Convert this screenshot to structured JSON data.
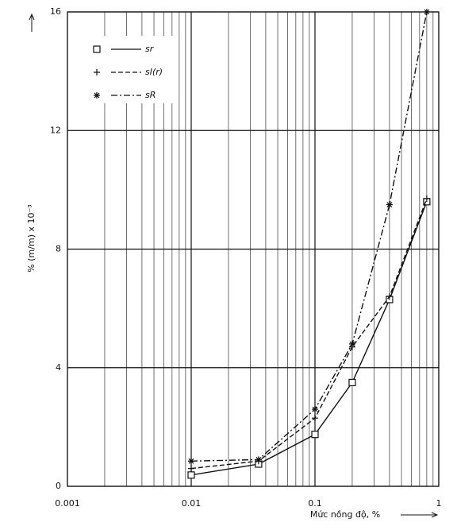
{
  "chart_data": {
    "type": "line",
    "x_label": "Mức nồng độ, %",
    "y_label": "% (m/m) x 10⁻³",
    "x": [
      0.01,
      0.035,
      0.1,
      0.2,
      0.4,
      0.8
    ],
    "series": [
      {
        "name": "sr",
        "color": "#111111",
        "dash": "solid",
        "marker": "square",
        "values": [
          0.38,
          0.75,
          1.75,
          3.5,
          6.3,
          9.6
        ]
      },
      {
        "name": "sI(r)",
        "color": "#111111",
        "dash": "dashed",
        "marker": "plus",
        "values": [
          0.6,
          0.85,
          2.3,
          4.7,
          6.4,
          9.7
        ]
      },
      {
        "name": "sR",
        "color": "#111111",
        "dash": "dashdot",
        "marker": "star",
        "values": [
          0.85,
          0.9,
          2.6,
          4.8,
          9.5,
          16
        ]
      }
    ],
    "xlim": [
      0.001,
      1
    ],
    "xticks": [
      0.001,
      0.01,
      0.1,
      1
    ],
    "x_log": true,
    "ylim": [
      0,
      16
    ],
    "yticks": [
      0,
      4,
      8,
      12,
      16
    ],
    "grid": true,
    "legend": "upper left"
  }
}
